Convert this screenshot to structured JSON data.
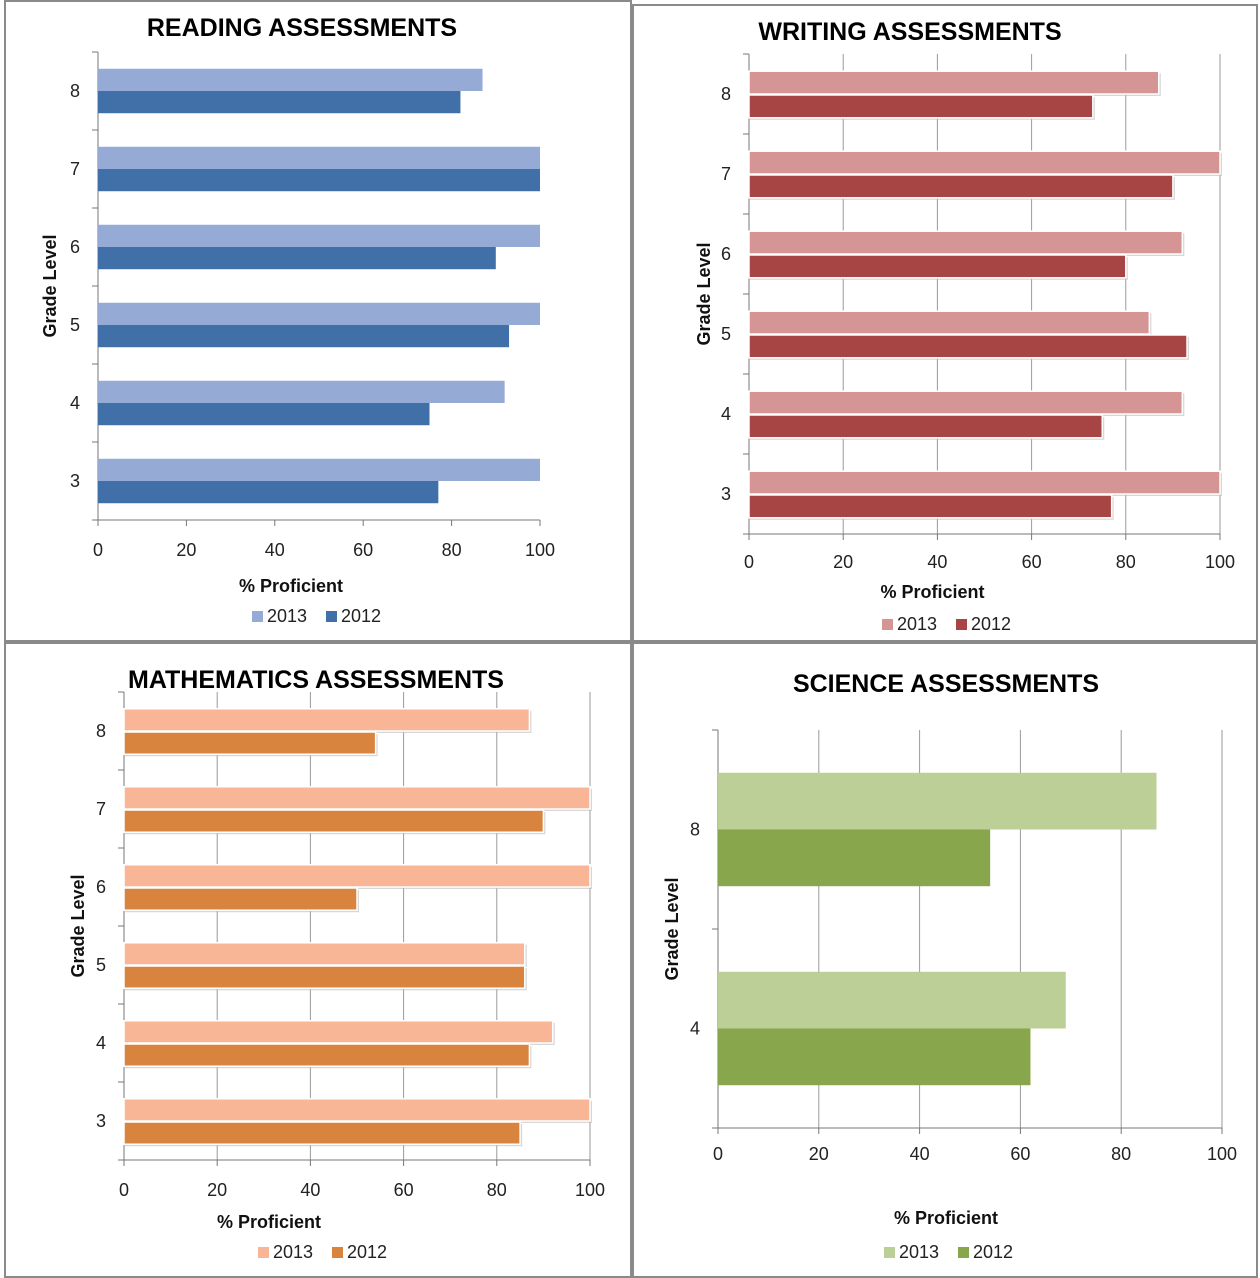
{
  "chart_data": [
    {
      "type": "bar",
      "orientation": "horizontal",
      "title": "READING ASSESSMENTS",
      "xlabel": "% Proficient",
      "ylabel": "Grade Level",
      "categories": [
        "3",
        "4",
        "5",
        "6",
        "7",
        "8"
      ],
      "series": [
        {
          "name": "2013",
          "values": [
            100,
            92,
            100,
            100,
            100,
            87
          ]
        },
        {
          "name": "2012",
          "values": [
            77,
            75,
            93,
            90,
            100,
            82
          ]
        }
      ],
      "xlim": [
        0,
        100
      ],
      "xticks": [
        "0",
        "20",
        "40",
        "60",
        "80",
        "100"
      ],
      "grid": false,
      "legend": "bottom",
      "colors": [
        "#95abd6",
        "#416fa8"
      ]
    },
    {
      "type": "bar",
      "orientation": "horizontal",
      "title": "WRITING ASSESSMENTS",
      "xlabel": "% Proficient",
      "ylabel": "Grade Level",
      "categories": [
        "3",
        "4",
        "5",
        "6",
        "7",
        "8"
      ],
      "series": [
        {
          "name": "2013",
          "values": [
            100,
            92,
            85,
            92,
            100,
            87
          ]
        },
        {
          "name": "2012",
          "values": [
            77,
            75,
            93,
            80,
            90,
            73
          ]
        }
      ],
      "xlim": [
        0,
        100
      ],
      "xticks": [
        "0",
        "20",
        "40",
        "60",
        "80",
        "100"
      ],
      "grid": true,
      "legend": "bottom",
      "colors": [
        "#d59595",
        "#a74444"
      ]
    },
    {
      "type": "bar",
      "orientation": "horizontal",
      "title": "MATHEMATICS  ASSESSMENTS",
      "xlabel": "% Proficient",
      "ylabel": "Grade Level",
      "categories": [
        "3",
        "4",
        "5",
        "6",
        "7",
        "8"
      ],
      "series": [
        {
          "name": "2013",
          "values": [
            100,
            92,
            86,
            100,
            100,
            87
          ]
        },
        {
          "name": "2012",
          "values": [
            85,
            87,
            86,
            50,
            90,
            54
          ]
        }
      ],
      "xlim": [
        0,
        100
      ],
      "xticks": [
        "0",
        "20",
        "40",
        "60",
        "80",
        "100"
      ],
      "grid": true,
      "legend": "bottom",
      "colors": [
        "#f8b696",
        "#d8843f"
      ]
    },
    {
      "type": "bar",
      "orientation": "horizontal",
      "title": "SCIENCE ASSESSMENTS",
      "xlabel": "% Proficient",
      "ylabel": "Grade Level",
      "categories": [
        "4",
        "8"
      ],
      "series": [
        {
          "name": "2013",
          "values": [
            69,
            87
          ]
        },
        {
          "name": "2012",
          "values": [
            62,
            54
          ]
        }
      ],
      "xlim": [
        0,
        100
      ],
      "xticks": [
        "0",
        "20",
        "40",
        "60",
        "80",
        "100"
      ],
      "grid": true,
      "legend": "bottom",
      "colors": [
        "#bccf96",
        "#88a64b"
      ]
    }
  ]
}
